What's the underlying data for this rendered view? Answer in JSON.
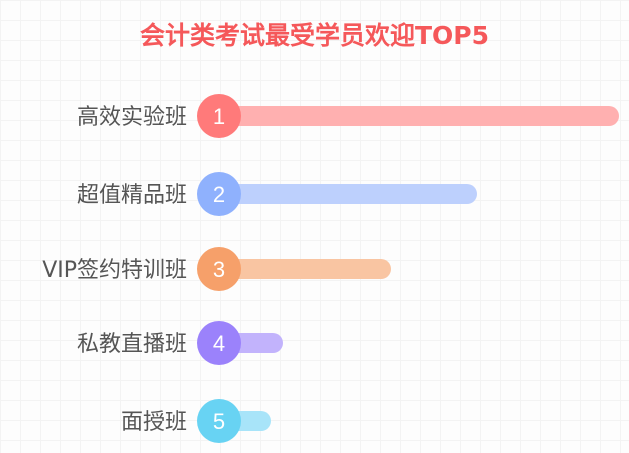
{
  "chart_data": {
    "type": "bar",
    "orientation": "horizontal",
    "title": "会计类考试最受学员欢迎TOP5",
    "categories": [
      "高效实验班",
      "超值精品班",
      "VIP签约特训班",
      "私教直播班",
      "面授班"
    ],
    "ranks": [
      "1",
      "2",
      "3",
      "4",
      "5"
    ],
    "values": [
      100,
      64.5,
      43,
      16,
      13
    ],
    "value_unit": "relative popularity (% of top)",
    "colors": {
      "circle": [
        "#ff7a7a",
        "#8fb1fd",
        "#f6a06a",
        "#9b82fb",
        "#68d3f3"
      ],
      "bar": [
        "#ffb0b0",
        "#bdd0fd",
        "#f9c5a2",
        "#c2b3fc",
        "#a8e4f9"
      ]
    },
    "title_color": "#f5585a",
    "grid": false
  }
}
